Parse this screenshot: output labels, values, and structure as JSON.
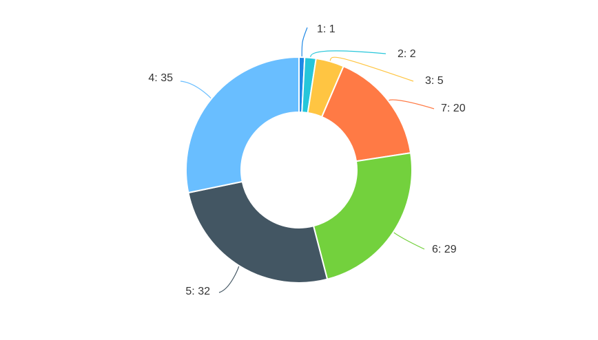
{
  "chart_data": {
    "type": "pie",
    "donut": true,
    "legend": "none",
    "slices": [
      {
        "name": "1",
        "value": 1,
        "color": "#1E88E5",
        "label": "1: 1"
      },
      {
        "name": "2",
        "value": 2,
        "color": "#26C6DA",
        "label": "2: 2"
      },
      {
        "name": "3",
        "value": 5,
        "color": "#FFC542",
        "label": "3: 5"
      },
      {
        "name": "7",
        "value": 20,
        "color": "#FF7A45",
        "label": "7: 20"
      },
      {
        "name": "6",
        "value": 29,
        "color": "#73D13D",
        "label": "6: 29"
      },
      {
        "name": "5",
        "value": 32,
        "color": "#435663",
        "label": "5: 32"
      },
      {
        "name": "4",
        "value": 35,
        "color": "#69BEFF",
        "label": "4: 35"
      }
    ]
  }
}
